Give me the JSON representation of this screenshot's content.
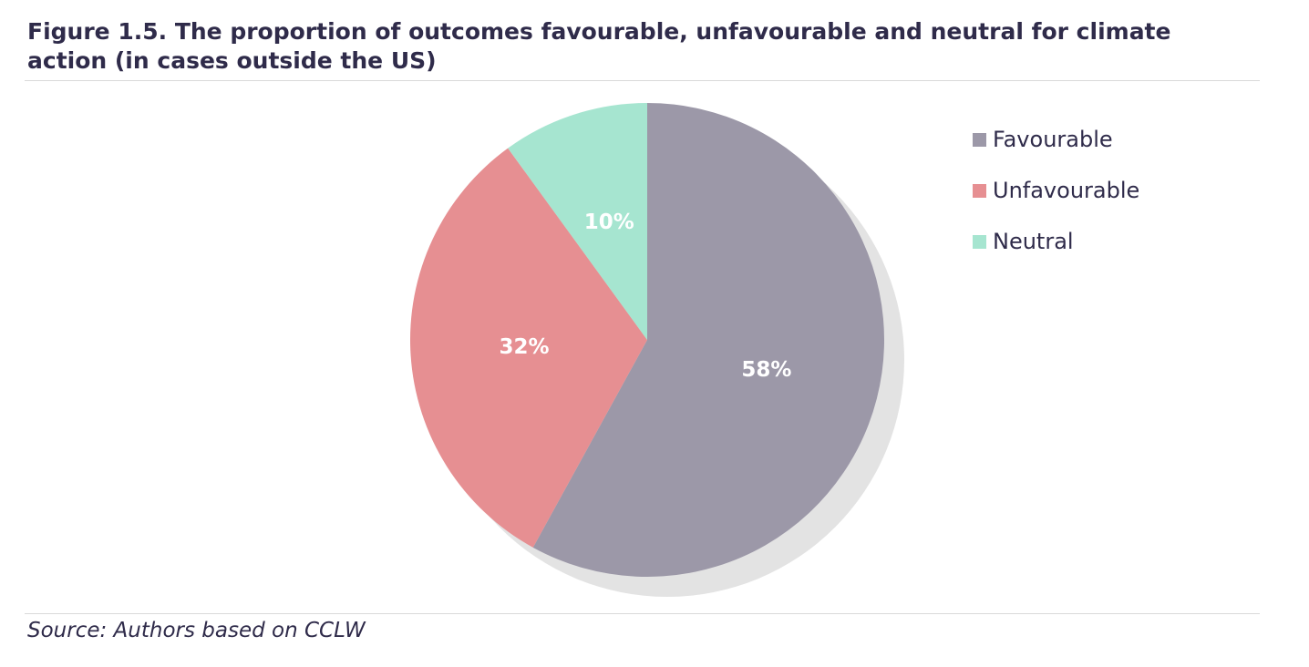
{
  "figure": {
    "title": "Figure 1.5. The proportion of outcomes favourable, unfavourable and neutral for climate action (in cases outside the US)",
    "source": "Source: Authors based on CCLW"
  },
  "chart_data": {
    "type": "pie",
    "title": "Figure 1.5. The proportion of outcomes favourable, unfavourable and neutral for climate action (in cases outside the US)",
    "slices": [
      {
        "label": "Favourable",
        "value": 58,
        "display": "58%",
        "color": "#9c98a8"
      },
      {
        "label": "Unfavourable",
        "value": 32,
        "display": "32%",
        "color": "#e68f92"
      },
      {
        "label": "Neutral",
        "value": 10,
        "display": "10%",
        "color": "#a6e5d0"
      }
    ],
    "start": "12 o'clock",
    "direction": "clockwise",
    "legend_position": "right",
    "shadow_color": "#e3e3e3"
  }
}
